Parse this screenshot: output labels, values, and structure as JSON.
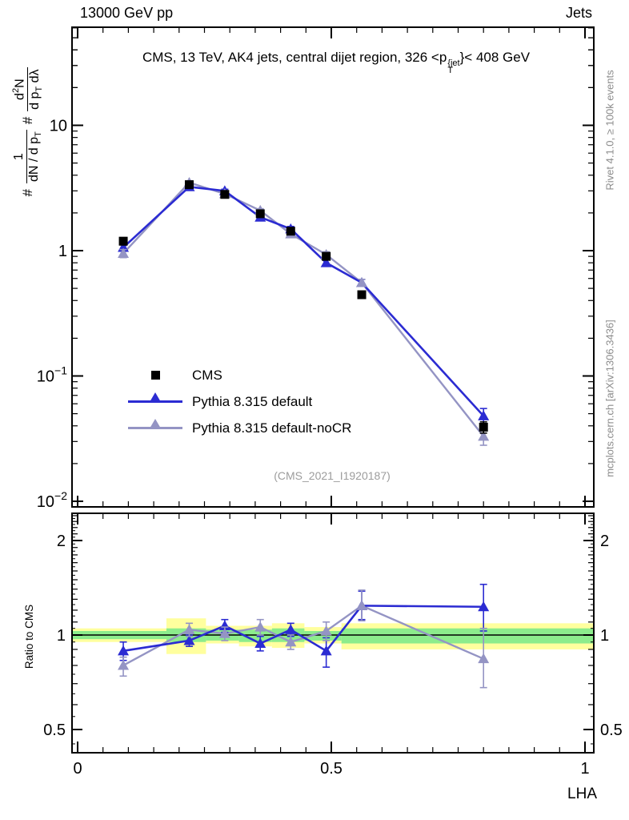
{
  "header": {
    "left": "13000 GeV pp",
    "right": "Jets"
  },
  "main_title": {
    "prefix": "CMS, 13 TeV, AK4 jets, central dijet region, 326 <p",
    "sup": "{jet",
    "sub": "T",
    "suffix": "}< 408 GeV"
  },
  "ylabel": {
    "hash1": "#",
    "f1num": "1",
    "f1den_a": "dN / d p",
    "f1den_sub": "T",
    "hash2": "#",
    "f2num_a": "d",
    "f2num_sup": "2",
    "f2num_b": "N",
    "f2den_a": "d p",
    "f2den_sub": "T",
    "f2den_b": " dλ"
  },
  "ratio_ylabel": "Ratio to CMS",
  "xlabel": "LHA",
  "watermark": "(CMS_2021_I1920187)",
  "side_notes": {
    "top": "Rivet 4.1.0, ≥ 100k events",
    "bottom": "mcplots.cern.ch [arXiv:1306.3436]"
  },
  "legend": {
    "items": [
      {
        "label": "CMS"
      },
      {
        "label": "Pythia 8.315 default"
      },
      {
        "label": "Pythia 8.315 default-noCR"
      }
    ]
  },
  "chart_data": {
    "type": "line",
    "title": "CMS, 13 TeV, AK4 jets, central dijet region, 326 < pT^jet < 408 GeV",
    "xlabel": "LHA",
    "ylabel": "# 1/(dN/dpT) # d2N/(dpT dLambda)",
    "ratio_ylabel": "Ratio to CMS",
    "x_range": [
      -0.011,
      1.017
    ],
    "y_main_log_range": [
      0.009,
      60.7
    ],
    "ratio_log_range": [
      0.42,
      2.44
    ],
    "grid": false,
    "legend_position": "inside-left-middle",
    "x": [
      0.09,
      0.22,
      0.29,
      0.36,
      0.42,
      0.49,
      0.56,
      0.8
    ],
    "series": [
      {
        "name": "CMS",
        "marker": "square",
        "color": "#000000",
        "line": false,
        "values": [
          1.19,
          3.36,
          2.81,
          1.97,
          1.43,
          0.9,
          0.445,
          0.039
        ],
        "yerr": [
          0.08,
          0.12,
          0.1,
          0.07,
          0.06,
          0.04,
          0.025,
          0.004
        ]
      },
      {
        "name": "Pythia 8.315 default",
        "marker": "triangle",
        "color": "#2b2bd2",
        "line": true,
        "values": [
          1.06,
          3.23,
          3.0,
          1.85,
          1.49,
          0.8,
          0.555,
          0.048
        ],
        "yerr": [
          0.07,
          0.1,
          0.09,
          0.07,
          0.07,
          0.05,
          0.035,
          0.007
        ]
      },
      {
        "name": "Pythia 8.315 default-noCR",
        "marker": "triangle",
        "color": "#9494c4",
        "line": true,
        "values": [
          0.95,
          3.49,
          2.84,
          2.09,
          1.36,
          0.93,
          0.555,
          0.033
        ],
        "yerr": [
          0.07,
          0.11,
          0.09,
          0.07,
          0.06,
          0.05,
          0.035,
          0.005
        ]
      }
    ],
    "ratio_series": [
      {
        "name": "Pythia 8.315 default",
        "color": "#2b2bd2",
        "values": [
          0.89,
          0.96,
          1.07,
          0.94,
          1.04,
          0.89,
          1.24,
          1.23
        ],
        "err_up": [
          0.06,
          0.04,
          0.05,
          0.05,
          0.05,
          0.09,
          0.14,
          0.22
        ],
        "err_dn": [
          0.06,
          0.04,
          0.05,
          0.05,
          0.05,
          0.1,
          0.12,
          0.2
        ]
      },
      {
        "name": "Pythia 8.315 default-noCR",
        "color": "#9494c4",
        "values": [
          0.8,
          1.04,
          1.01,
          1.06,
          0.95,
          1.03,
          1.24,
          0.84
        ],
        "err_up": [
          0.05,
          0.05,
          0.05,
          0.06,
          0.05,
          0.07,
          0.15,
          0.21
        ],
        "err_dn": [
          0.06,
          0.05,
          0.05,
          0.06,
          0.05,
          0.07,
          0.13,
          0.16
        ]
      }
    ],
    "ratio_bands": [
      {
        "x0": -0.011,
        "x1": 0.175,
        "ylo": 0.95,
        "yhi": 1.05,
        "glo": 0.97,
        "ghi": 1.03
      },
      {
        "x0": 0.175,
        "x1": 0.253,
        "ylo": 0.87,
        "yhi": 1.13,
        "glo": 0.95,
        "ghi": 1.05
      },
      {
        "x0": 0.253,
        "x1": 0.318,
        "ylo": 0.94,
        "yhi": 1.07,
        "glo": 0.96,
        "ghi": 1.04
      },
      {
        "x0": 0.318,
        "x1": 0.383,
        "ylo": 0.92,
        "yhi": 1.07,
        "glo": 0.95,
        "ghi": 1.04
      },
      {
        "x0": 0.383,
        "x1": 0.447,
        "ylo": 0.91,
        "yhi": 1.09,
        "glo": 0.95,
        "ghi": 1.05
      },
      {
        "x0": 0.447,
        "x1": 0.52,
        "ylo": 0.94,
        "yhi": 1.06,
        "glo": 0.96,
        "ghi": 1.03
      },
      {
        "x0": 0.52,
        "x1": 1.017,
        "ylo": 0.9,
        "yhi": 1.09,
        "glo": 0.94,
        "ghi": 1.05
      }
    ],
    "colors": {
      "band_yellow": "#ffff9e",
      "band_green": "#8cec8c",
      "ratio_line": "#000000"
    },
    "yticks_main": [
      {
        "v": 10,
        "base": "10",
        "exp": ""
      },
      {
        "v": 1,
        "base": "1",
        "exp": ""
      },
      {
        "v": 0.1,
        "base": "10",
        "exp": "−1"
      },
      {
        "v": 0.01,
        "base": "10",
        "exp": "−2"
      }
    ],
    "ratio_yticks": [
      {
        "v": 2,
        "t": "2"
      },
      {
        "v": 1,
        "t": "1"
      },
      {
        "v": 0.5,
        "t": "0.5"
      }
    ],
    "xticks": [
      {
        "v": 0,
        "t": "0"
      },
      {
        "v": 0.5,
        "t": "0.5"
      },
      {
        "v": 1,
        "t": "1"
      }
    ]
  }
}
